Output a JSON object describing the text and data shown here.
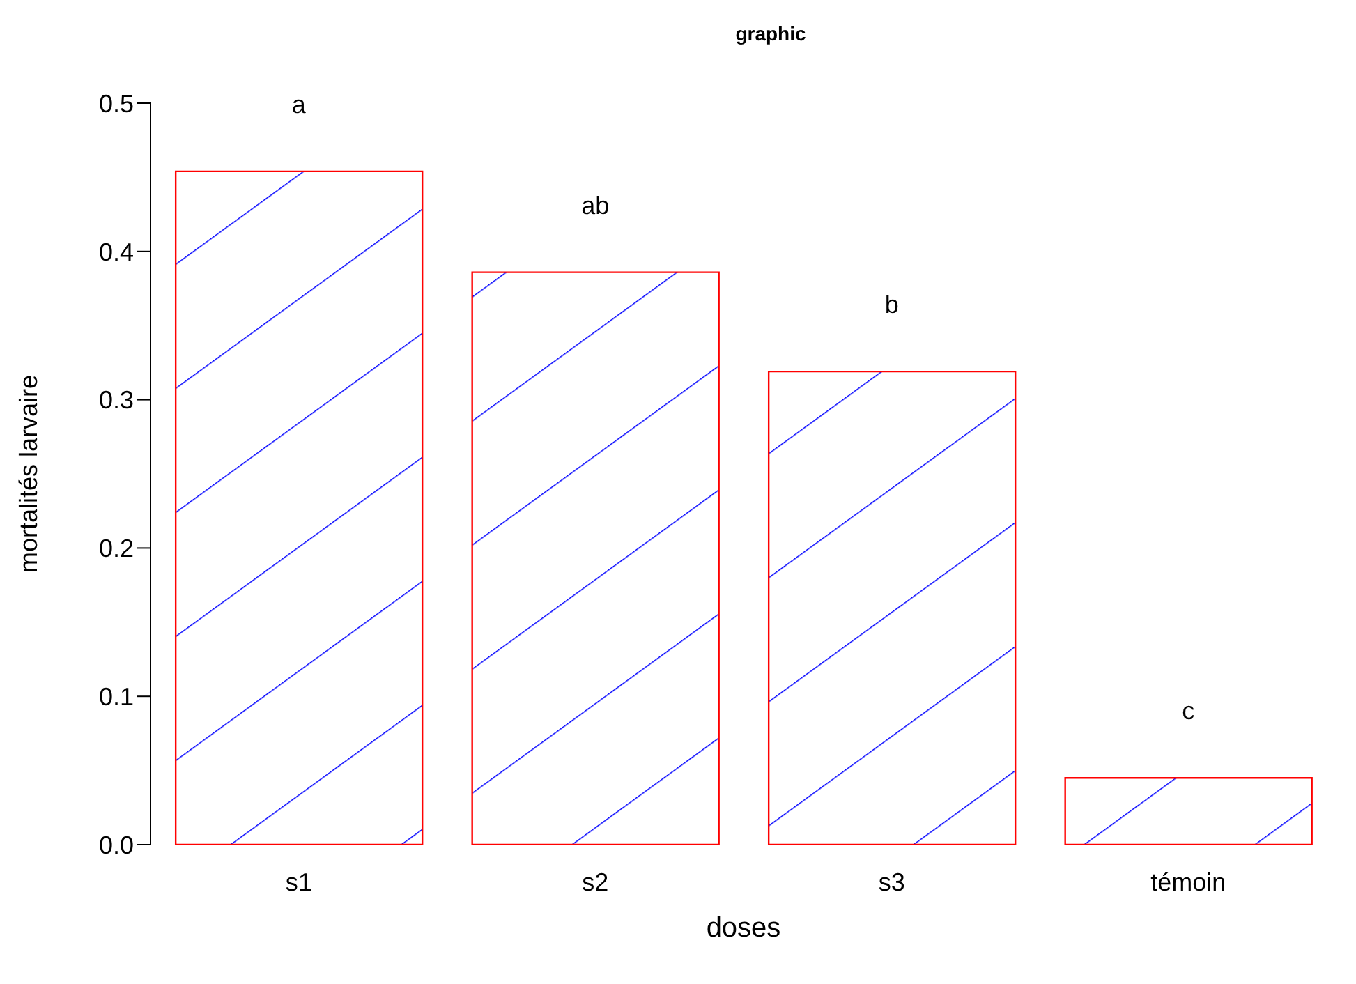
{
  "chart_data": {
    "type": "bar",
    "title": "graphic",
    "xlabel": "doses",
    "ylabel": "mortalités larvaire",
    "categories": [
      "s1",
      "s2",
      "s3",
      "témoin"
    ],
    "values": [
      0.454,
      0.386,
      0.319,
      0.045
    ],
    "color": "#ff0000",
    "ylim": [
      0,
      0.5
    ],
    "yticks": [
      {
        "value": 0,
        "label": "0.0"
      },
      {
        "value": 0.1,
        "label": "0.1"
      },
      {
        "value": 0.2,
        "label": "0.2"
      },
      {
        "value": 0.3,
        "label": "0.3"
      },
      {
        "value": 0.4,
        "label": "0.4"
      },
      {
        "value": 0.5,
        "label": "0.5"
      }
    ],
    "annotations": [
      "a",
      "ab",
      "b",
      "c"
    ],
    "grid": false,
    "legend": false
  }
}
